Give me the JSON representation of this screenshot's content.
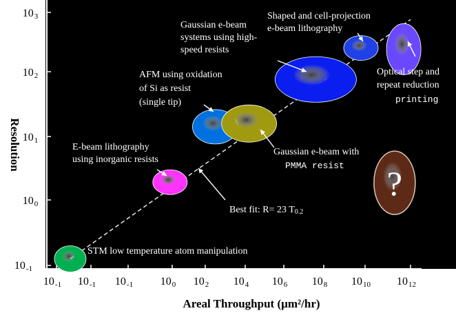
{
  "chart_data": {
    "type": "scatter",
    "xlabel": "Areal Throughput (µm²/hr)",
    "ylabel": "Resolution",
    "x_scale": "log",
    "y_scale": "log",
    "x_tick_labels": [
      {
        "base": "10",
        "exp": "-1"
      },
      {
        "base": "10",
        "exp": "-1"
      },
      {
        "base": "10",
        "exp": "-1"
      },
      {
        "base": "10",
        "exp": "0"
      },
      {
        "base": "10",
        "exp": "2"
      },
      {
        "base": "10",
        "exp": "4"
      },
      {
        "base": "10",
        "exp": "6"
      },
      {
        "base": "10",
        "exp": "8"
      },
      {
        "base": "10",
        "exp": "10"
      },
      {
        "base": "10",
        "exp": "12"
      }
    ],
    "y_tick_labels": [
      {
        "base": "10",
        "exp": "3"
      },
      {
        "base": "10",
        "exp": "2"
      },
      {
        "base": "10",
        "exp": "1"
      },
      {
        "base": "10",
        "exp": "0"
      },
      {
        "base": "10",
        "exp": "-1"
      }
    ],
    "xlim_log10": [
      -8,
      12
    ],
    "ylim_log10": [
      -1,
      3
    ],
    "grid": false,
    "fit_line": {
      "label_prefix": "Best fit: R= 23 T",
      "label_sub": "0.2"
    },
    "points": [
      {
        "label": "STM low temperature atom manipulation",
        "log_x": -7.2,
        "log_y": -0.9,
        "color": "#00b050"
      },
      {
        "label": "E-beam lithography using inorganic resists",
        "log_x": -0.2,
        "log_y": 0.28,
        "color": "#ff33ff"
      },
      {
        "label": "AFM using oxidation of Si as resist (single tip)",
        "log_x": 2.5,
        "log_y": 1.15,
        "color": "#0070e0"
      },
      {
        "label": "Gaussian e-beam with PMMA resist",
        "log_x": 4.2,
        "log_y": 1.2,
        "color": "#a09a10"
      },
      {
        "label": "Gaussian e-beam systems using high-speed resists",
        "log_x": 7.6,
        "log_y": 1.88,
        "color": "#0a1ef0"
      },
      {
        "label": "Shaped and cell-projection e-beam lithography",
        "log_x": 9.8,
        "log_y": 2.4,
        "color": "#2040e8"
      },
      {
        "label": "Optical step and repeat reduction printing",
        "log_x": 11.7,
        "log_y": 2.38,
        "color": "#6a48ff"
      },
      {
        "label": "?",
        "log_x": 11.3,
        "log_y": 0.27,
        "color": "#5c2a16"
      }
    ]
  }
}
